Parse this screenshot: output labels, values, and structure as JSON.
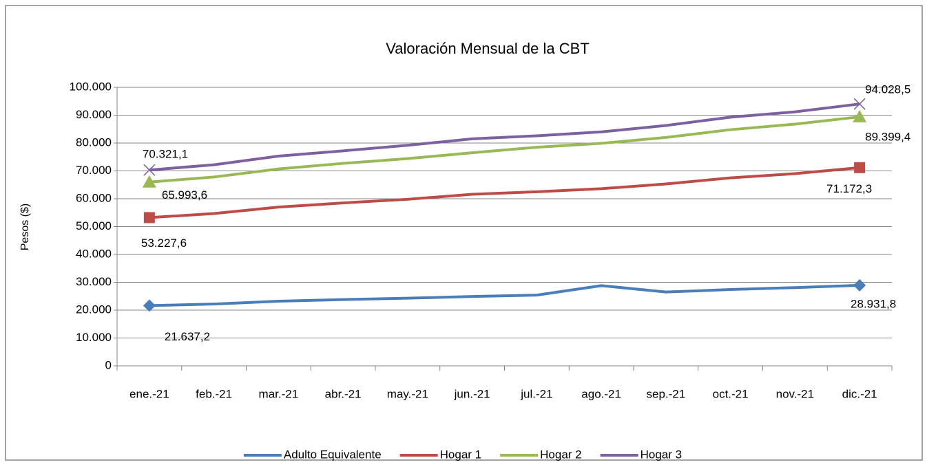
{
  "chart_data": {
    "type": "line",
    "title": "Valoración Mensual de la CBT",
    "y_label": "Pesos ($)",
    "categories": [
      "ene.-21",
      "feb.-21",
      "mar.-21",
      "abr.-21",
      "may.-21",
      "jun.-21",
      "jul.-21",
      "ago.-21",
      "sep.-21",
      "oct.-21",
      "nov.-21",
      "dic.-21"
    ],
    "ylim": [
      0,
      100000
    ],
    "yticks": [
      0,
      {
        "value": 10000,
        "label": "10.000"
      },
      {
        "value": 20000,
        "label": "20.000"
      },
      {
        "value": 30000,
        "label": "30.000"
      },
      {
        "value": 40000,
        "label": "40.000"
      },
      {
        "value": 50000,
        "label": "50.000"
      },
      {
        "value": 60000,
        "label": "60.000"
      },
      {
        "value": 70000,
        "label": "70.000"
      },
      {
        "value": 80000,
        "label": "80.000"
      },
      {
        "value": 90000,
        "label": "90.000"
      },
      {
        "value": 100000,
        "label": "100.000"
      }
    ],
    "grid": true,
    "legend": "bottom",
    "series": [
      {
        "name": "Adulto Equivalente",
        "color": "#4a7ebb",
        "marker": "diamond",
        "values": [
          21637.2,
          22200,
          23200,
          23800,
          24300,
          24900,
          25400,
          28800,
          26500,
          27400,
          28100,
          28931.8
        ],
        "value_labels": [
          "21.637,2",
          null,
          null,
          null,
          null,
          null,
          null,
          null,
          null,
          null,
          null,
          "28.931,8"
        ]
      },
      {
        "name": "Hogar 1",
        "color": "#be4b48",
        "marker": "square",
        "values": [
          53227.6,
          54700,
          57000,
          58500,
          59800,
          61600,
          62500,
          63600,
          65300,
          67500,
          69000,
          71172.3
        ],
        "value_labels": [
          "53.227,6",
          null,
          null,
          null,
          null,
          null,
          null,
          null,
          null,
          null,
          null,
          "71.172,3"
        ]
      },
      {
        "name": "Hogar 2",
        "color": "#98b954",
        "marker": "triangle",
        "values": [
          65993.6,
          67800,
          70700,
          72700,
          74400,
          76500,
          78500,
          79900,
          82000,
          84800,
          86800,
          89399.4
        ],
        "value_labels": [
          "65.993,6",
          null,
          null,
          null,
          null,
          null,
          null,
          null,
          null,
          null,
          null,
          "89.399,4"
        ]
      },
      {
        "name": "Hogar 3",
        "color": "#7d60a0",
        "marker": "x",
        "values": [
          70321.1,
          72200,
          75300,
          77200,
          79200,
          81500,
          82600,
          84000,
          86300,
          89300,
          91200,
          94028.5
        ],
        "value_labels": [
          "70.321,1",
          null,
          null,
          null,
          null,
          null,
          null,
          null,
          null,
          null,
          null,
          "94.028,5"
        ]
      }
    ]
  }
}
